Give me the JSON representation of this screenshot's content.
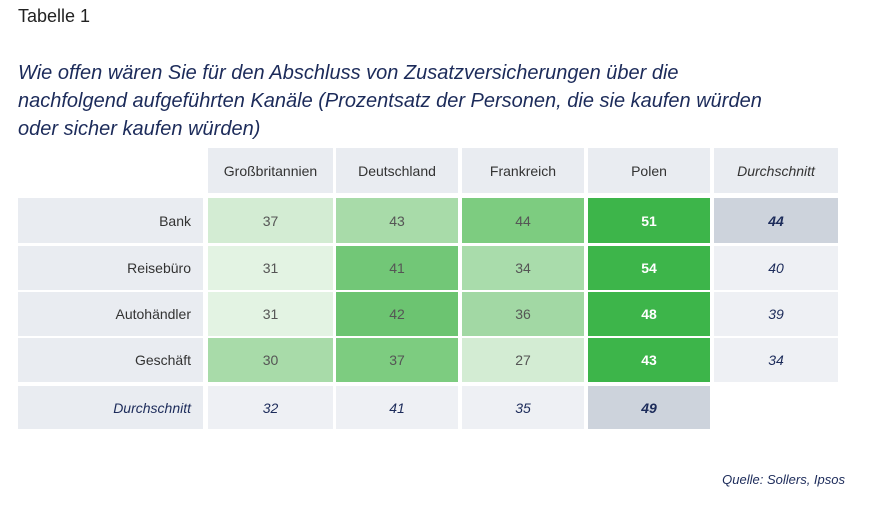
{
  "header": {
    "title": "Tabelle 1",
    "subtitle": [
      "Wie offen wären Sie für den Abschluss von Zusatzversicherungen über die",
      "nachfolgend aufgeführten Kanäle (Prozentsatz der Personen, die sie kaufen würden",
      "oder sicher kaufen würden)"
    ]
  },
  "table": {
    "columns": [
      "Großbritannien",
      "Deutschland",
      "Frankreich",
      "Polen",
      "Durchschnitt"
    ],
    "rows": [
      {
        "label": "Bank",
        "values": [
          37,
          43,
          44,
          51
        ],
        "average": 44,
        "colors": [
          "#d3ecd3",
          "#a8dba9",
          "#7dcc80",
          "#3db54a"
        ]
      },
      {
        "label": "Reisebüro",
        "values": [
          31,
          41,
          34,
          54
        ],
        "average": 40,
        "colors": [
          "#e3f3e3",
          "#72c777",
          "#a9dcab",
          "#3db54a"
        ]
      },
      {
        "label": "Autohändler",
        "values": [
          31,
          42,
          36,
          48
        ],
        "average": 39,
        "colors": [
          "#e3f3e3",
          "#6cc471",
          "#a2d8a4",
          "#3db54a"
        ]
      },
      {
        "label": "Geschäft",
        "values": [
          30,
          37,
          27,
          43
        ],
        "average": 34,
        "colors": [
          "#a8dba9",
          "#7dcc80",
          "#d3ecd3",
          "#3db54a"
        ]
      }
    ],
    "average_row": {
      "label": "Durchschnitt",
      "values": [
        32,
        41,
        35,
        49
      ]
    }
  },
  "footer": {
    "source": "Quelle: Sollers, Ipsos"
  }
}
